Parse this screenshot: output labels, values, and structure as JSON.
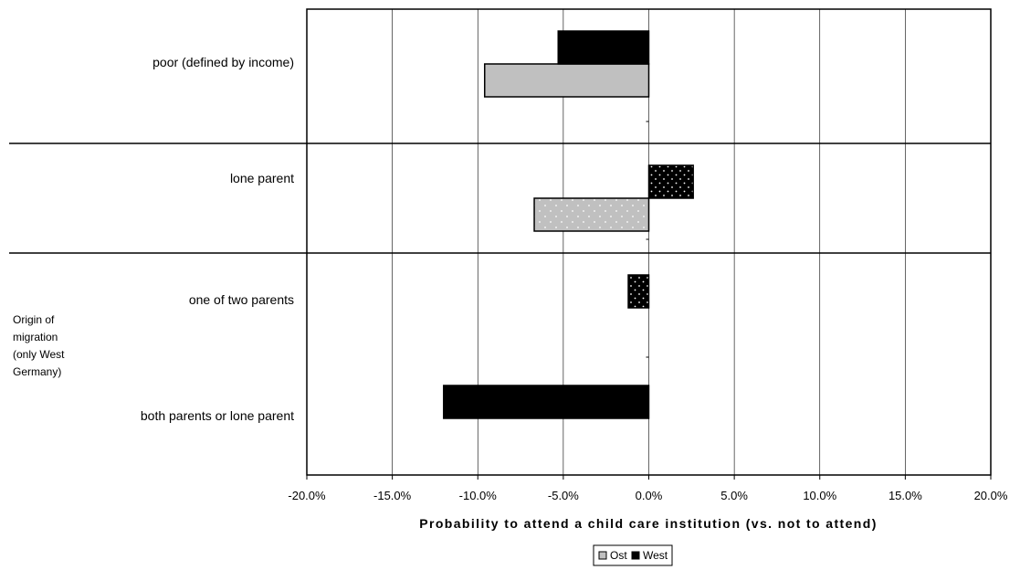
{
  "chart_data": {
    "type": "bar",
    "orientation": "horizontal",
    "xlabel": "Probability to attend a child care institution (vs. not to attend)",
    "xlim": [
      -0.2,
      0.2
    ],
    "x_ticks": [
      -0.2,
      -0.15,
      -0.1,
      -0.05,
      0.0,
      0.05,
      0.1,
      0.15,
      0.2
    ],
    "x_tick_labels": [
      "-20.0%",
      "-15.0%",
      "-10.0%",
      "-5.0%",
      "0.0%",
      "5.0%",
      "10.0%",
      "15.0%",
      "20.0%"
    ],
    "grid": "vertical",
    "legend_position": "bottom",
    "categories": [
      "poor (defined by income)",
      "lone parent",
      "one of two parents",
      "both parents or lone parent"
    ],
    "group_label": {
      "text": "Origin of migration (only West Germany)",
      "lines": [
        "Origin of",
        "migration",
        "(only West",
        "Germany)"
      ],
      "categories": [
        "one of two parents",
        "both parents or lone parent"
      ]
    },
    "series": [
      {
        "name": "Ost",
        "color": "#c0c0c0",
        "values": [
          -0.096,
          -0.067,
          null,
          null
        ],
        "patterned": [
          false,
          true,
          false,
          false
        ]
      },
      {
        "name": "West",
        "color": "#000000",
        "values": [
          -0.053,
          0.026,
          -0.012,
          -0.12
        ],
        "patterned": [
          false,
          true,
          true,
          false
        ]
      }
    ]
  }
}
